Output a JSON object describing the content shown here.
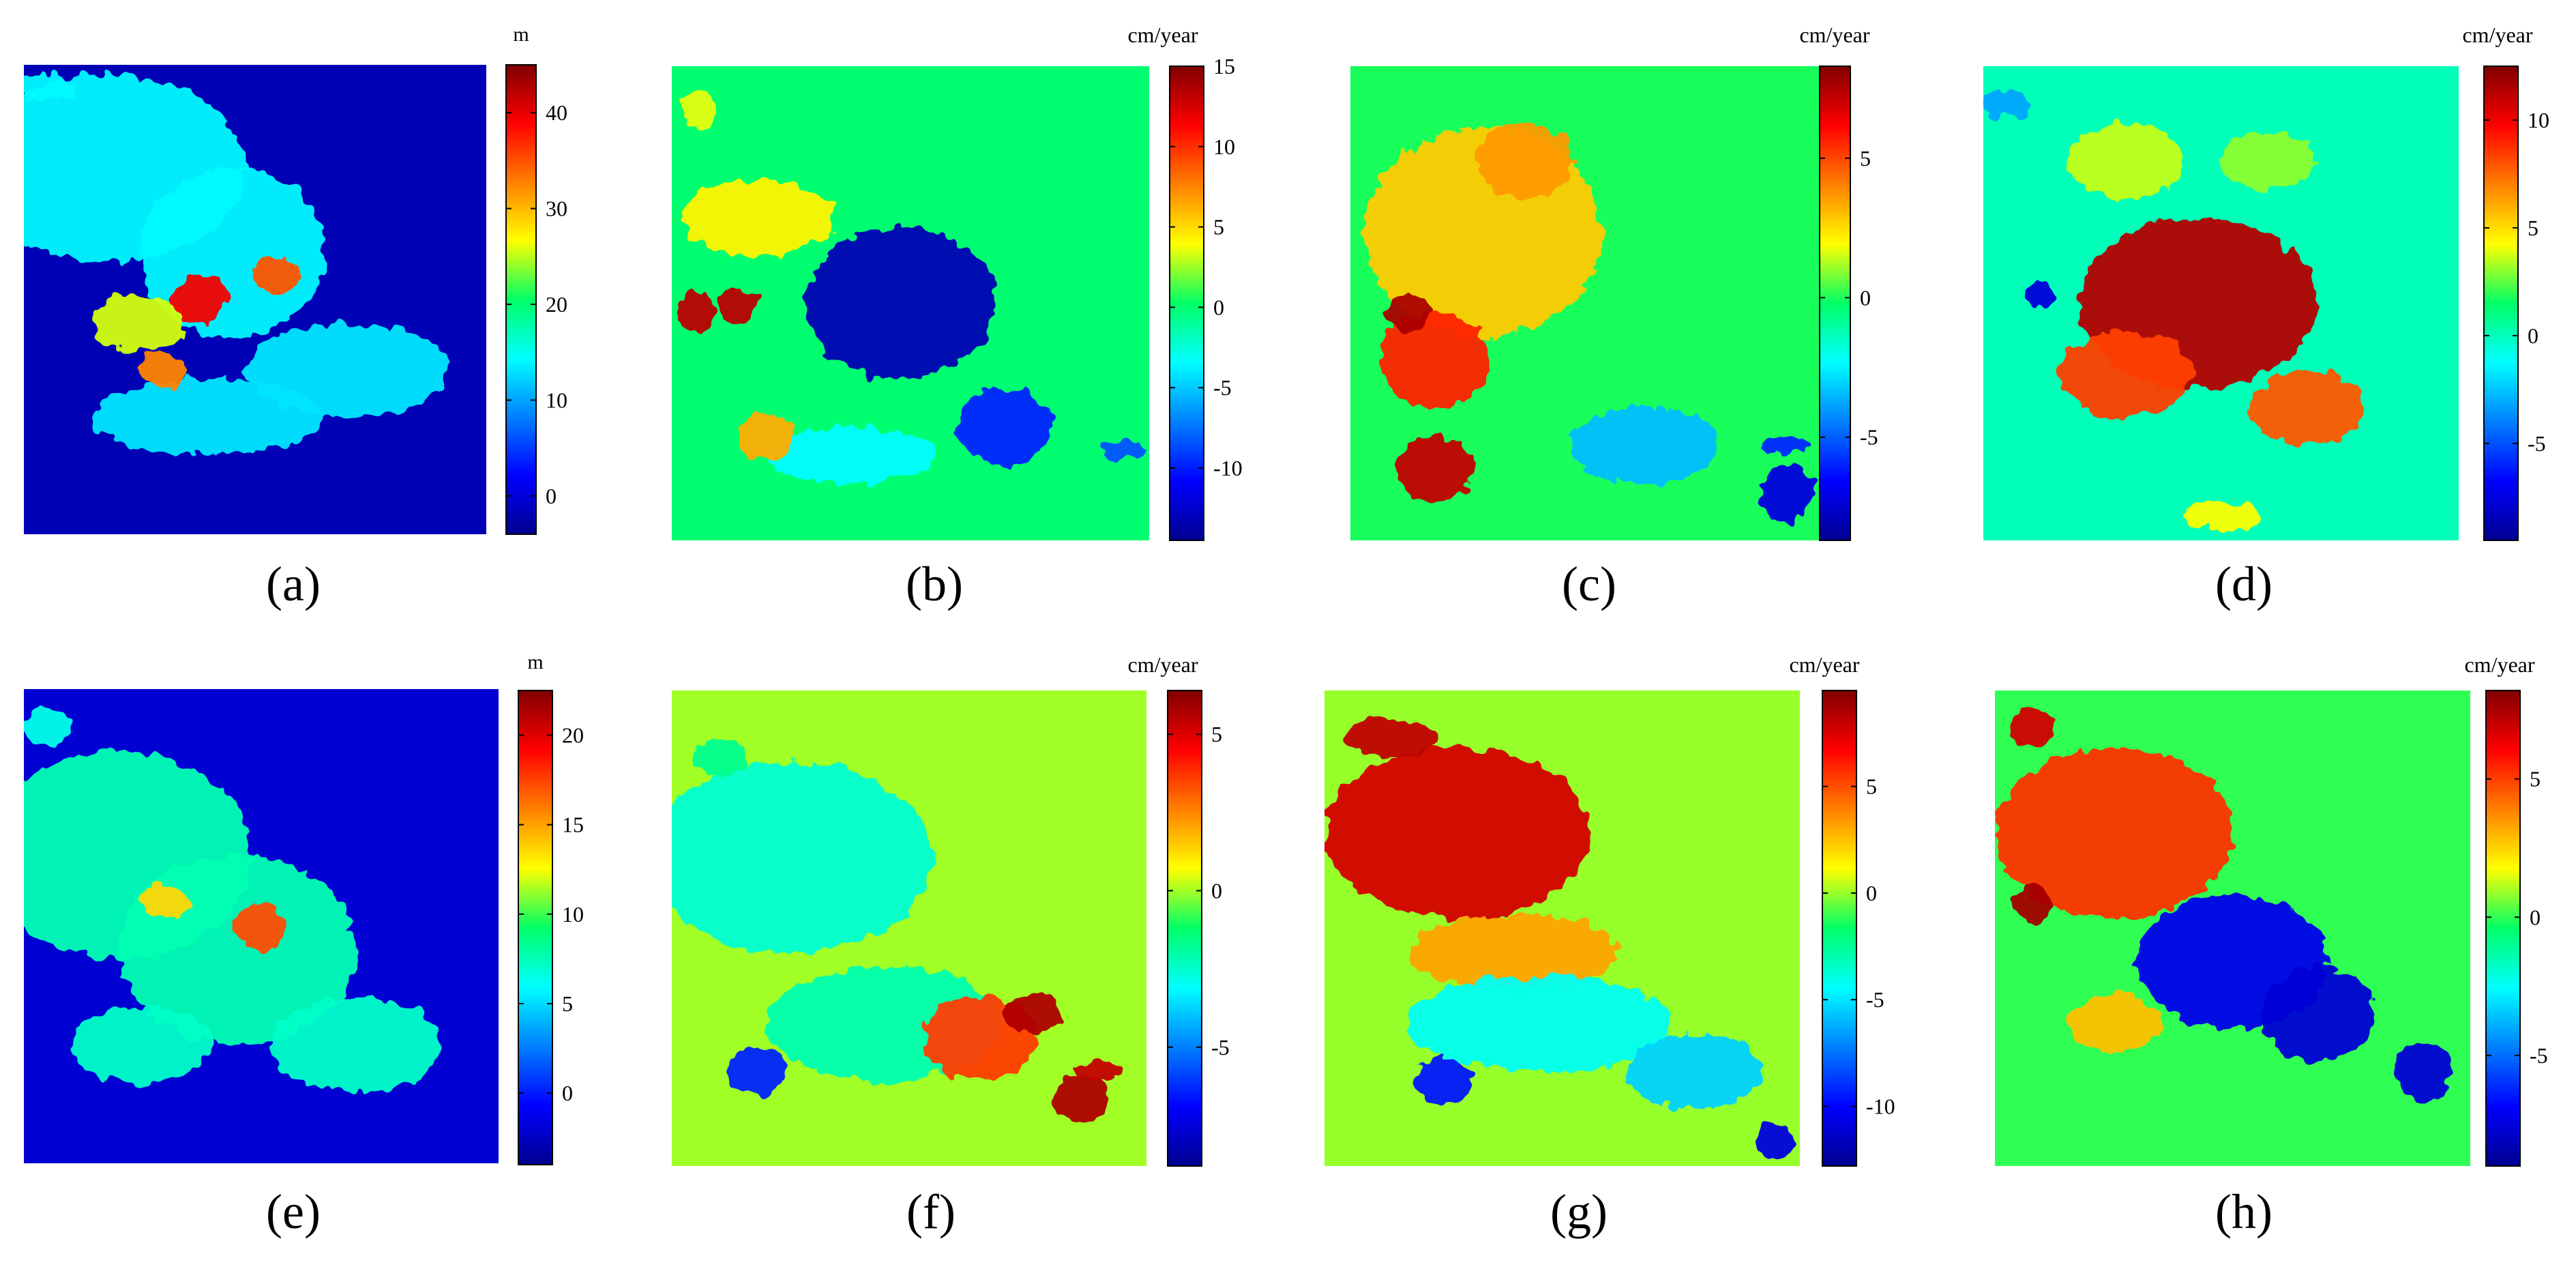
{
  "figure": {
    "panels": [
      {
        "letter": "a",
        "label": "(a)",
        "unit": "m"
      },
      {
        "letter": "b",
        "label": "(b)",
        "unit": "cm/year"
      },
      {
        "letter": "c",
        "label": "(c)",
        "unit": "cm/year"
      },
      {
        "letter": "d",
        "label": "(d)",
        "unit": "cm/year"
      },
      {
        "letter": "e",
        "label": "(e)",
        "unit": "m"
      },
      {
        "letter": "f",
        "label": "(f)",
        "unit": "cm/year"
      },
      {
        "letter": "g",
        "label": "(g)",
        "unit": "cm/year"
      },
      {
        "letter": "h",
        "label": "(h)",
        "unit": "cm/year"
      }
    ]
  },
  "chart_data": [
    {
      "type": "heatmap",
      "panel": "(a)",
      "colorbar_label": "m",
      "colormap": "jet",
      "vmin": -4,
      "vmax": 45,
      "ticks": [
        0,
        10,
        20,
        30,
        40
      ],
      "background_value": -2,
      "peak_value": 44
    },
    {
      "type": "heatmap",
      "panel": "(b)",
      "colorbar_label": "cm/year",
      "colormap": "jet",
      "vmin": -14.5,
      "vmax": 15,
      "ticks": [
        -10,
        -5,
        0,
        5,
        10,
        15
      ],
      "background_value": 0,
      "min_value": -14,
      "max_value": 14
    },
    {
      "type": "heatmap",
      "panel": "(c)",
      "colorbar_label": "cm/year",
      "colormap": "jet",
      "vmin": -8.7,
      "vmax": 8.3,
      "ticks": [
        -5,
        0,
        5
      ],
      "background_value": 0,
      "min_value": -8.5,
      "max_value": 8
    },
    {
      "type": "heatmap",
      "panel": "(d)",
      "colorbar_label": "cm/year",
      "colormap": "jet",
      "vmin": -9.5,
      "vmax": 12.5,
      "ticks": [
        -5,
        0,
        5,
        10
      ],
      "background_value": 0,
      "min_value": -9,
      "max_value": 12
    },
    {
      "type": "heatmap",
      "panel": "(e)",
      "colorbar_label": "m",
      "colormap": "jet",
      "vmin": -4,
      "vmax": 22.5,
      "ticks": [
        0,
        5,
        10,
        15,
        20
      ],
      "background_value": -2,
      "peak_value": 22
    },
    {
      "type": "heatmap",
      "panel": "(f)",
      "colorbar_label": "cm/year",
      "colormap": "jet",
      "vmin": -8.8,
      "vmax": 6.4,
      "ticks": [
        -5,
        0,
        5
      ],
      "background_value": 0,
      "min_value": -8.5,
      "max_value": 6
    },
    {
      "type": "heatmap",
      "panel": "(g)",
      "colorbar_label": "cm/year",
      "colormap": "jet",
      "vmin": -12.8,
      "vmax": 9.5,
      "ticks": [
        -10,
        -5,
        0,
        5
      ],
      "background_value": 0,
      "min_value": -12,
      "max_value": 9
    },
    {
      "type": "heatmap",
      "panel": "(h)",
      "colorbar_label": "cm/year",
      "colormap": "jet",
      "vmin": -9,
      "vmax": 8.2,
      "ticks": [
        -5,
        0,
        5
      ],
      "background_value": 0,
      "min_value": -8.5,
      "max_value": 8
    }
  ]
}
